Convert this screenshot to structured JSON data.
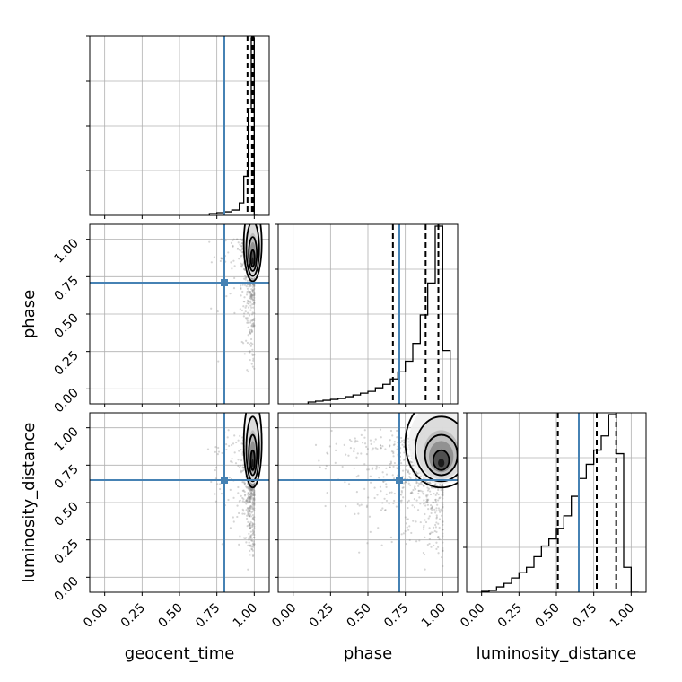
{
  "chart_data": {
    "type": "corner",
    "parameters": [
      "geocent_time",
      "phase",
      "luminosity_distance"
    ],
    "axis_labels": {
      "x": [
        "geocent_time",
        "phase",
        "luminosity_distance"
      ],
      "y": [
        "",
        "phase",
        "luminosity_distance"
      ]
    },
    "ticks": [
      0.0,
      0.25,
      0.5,
      0.75,
      1.0
    ],
    "tick_labels": [
      "0.00",
      "0.25",
      "0.50",
      "0.75",
      "1.00"
    ],
    "xlim": [
      -0.1,
      1.1
    ],
    "ylim": [
      -0.1,
      1.1
    ],
    "grid": true,
    "injection": {
      "geocent_time": 0.8,
      "phase": 0.71,
      "luminosity_distance": 0.65
    },
    "injection_color": "#4682b4",
    "quantiles": {
      "geocent_time": [
        0.955,
        0.985,
        0.995
      ],
      "phase": [
        0.667,
        0.886,
        0.971
      ],
      "luminosity_distance": [
        0.51,
        0.77,
        0.9
      ]
    },
    "histograms": {
      "geocent_time": {
        "edges": [
          0.7,
          0.75,
          0.8,
          0.85,
          0.9,
          0.93,
          0.96,
          0.98,
          1.0,
          1.02
        ],
        "counts": [
          0.01,
          0.015,
          0.02,
          0.03,
          0.07,
          0.22,
          0.6,
          1.0,
          0.0
        ]
      },
      "phase": {
        "edges": [
          0.1,
          0.15,
          0.2,
          0.25,
          0.3,
          0.35,
          0.4,
          0.45,
          0.5,
          0.55,
          0.6,
          0.65,
          0.7,
          0.75,
          0.8,
          0.85,
          0.9,
          0.95,
          1.0,
          1.05
        ],
        "counts": [
          0.01,
          0.015,
          0.02,
          0.025,
          0.03,
          0.04,
          0.05,
          0.06,
          0.07,
          0.09,
          0.11,
          0.14,
          0.18,
          0.24,
          0.34,
          0.5,
          0.68,
          1.0,
          0.3
        ]
      },
      "luminosity_distance": {
        "edges": [
          0.0,
          0.05,
          0.1,
          0.15,
          0.2,
          0.25,
          0.3,
          0.35,
          0.4,
          0.45,
          0.5,
          0.55,
          0.6,
          0.65,
          0.7,
          0.75,
          0.8,
          0.85,
          0.9,
          0.95,
          1.0,
          1.05
        ],
        "counts": [
          0.005,
          0.01,
          0.03,
          0.05,
          0.08,
          0.11,
          0.14,
          0.2,
          0.26,
          0.3,
          0.36,
          0.43,
          0.54,
          0.64,
          0.72,
          0.8,
          0.88,
          1.0,
          0.78,
          0.14,
          0.0
        ]
      }
    },
    "scatter_color": "#888888",
    "contour_color": "#000000"
  }
}
